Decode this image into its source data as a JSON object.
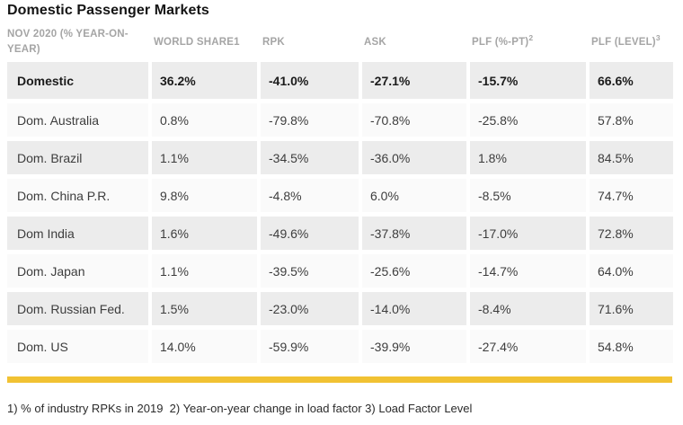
{
  "title": "Domestic Passenger Markets",
  "accent_color": "#f1c233",
  "row_stripe_colors": {
    "odd": "#ececec",
    "even": "#fafafa"
  },
  "table": {
    "columns": [
      {
        "label": "NOV 2020 (% YEAR-ON-YEAR)",
        "sup": ""
      },
      {
        "label": "WORLD SHARE1",
        "sup": ""
      },
      {
        "label": "RPK",
        "sup": ""
      },
      {
        "label": "ASK",
        "sup": ""
      },
      {
        "label": "PLF (%-PT)",
        "sup": "2"
      },
      {
        "label": "PLF (LEVEL)",
        "sup": "3"
      }
    ],
    "rows": [
      {
        "market": "Domestic",
        "world_share": "36.2%",
        "rpk": "-41.0%",
        "ask": "-27.1%",
        "plf_pt": "-15.7%",
        "plf_level": "66.6%",
        "emphasis": true
      },
      {
        "market": "Dom. Australia",
        "world_share": "0.8%",
        "rpk": "-79.8%",
        "ask": "-70.8%",
        "plf_pt": "-25.8%",
        "plf_level": "57.8%",
        "emphasis": false
      },
      {
        "market": "Dom. Brazil",
        "world_share": "1.1%",
        "rpk": "-34.5%",
        "ask": "-36.0%",
        "plf_pt": "1.8%",
        "plf_level": "84.5%",
        "emphasis": false
      },
      {
        "market": "Dom. China P.R.",
        "world_share": "9.8%",
        "rpk": "-4.8%",
        "ask": "6.0%",
        "plf_pt": "-8.5%",
        "plf_level": "74.7%",
        "emphasis": false
      },
      {
        "market": "Dom India",
        "world_share": "1.6%",
        "rpk": "-49.6%",
        "ask": "-37.8%",
        "plf_pt": "-17.0%",
        "plf_level": "72.8%",
        "emphasis": false
      },
      {
        "market": "Dom. Japan",
        "world_share": "1.1%",
        "rpk": "-39.5%",
        "ask": "-25.6%",
        "plf_pt": "-14.7%",
        "plf_level": "64.0%",
        "emphasis": false
      },
      {
        "market": "Dom. Russian Fed.",
        "world_share": "1.5%",
        "rpk": "-23.0%",
        "ask": "-14.0%",
        "plf_pt": "-8.4%",
        "plf_level": "71.6%",
        "emphasis": false
      },
      {
        "market": "Dom. US",
        "world_share": "14.0%",
        "rpk": "-59.9%",
        "ask": "-39.9%",
        "plf_pt": "-27.4%",
        "plf_level": "54.8%",
        "emphasis": false
      }
    ]
  },
  "footnote": "1) % of industry RPKs in 2019  2) Year-on-year change in load factor 3) Load Factor Level",
  "chart_data": {
    "type": "table",
    "title": "Domestic Passenger Markets",
    "columns": [
      "NOV 2020 (% YEAR-ON-YEAR)",
      "WORLD SHARE1",
      "RPK",
      "ASK",
      "PLF (%-PT)2",
      "PLF (LEVEL)3"
    ],
    "rows": [
      [
        "Domestic",
        "36.2%",
        "-41.0%",
        "-27.1%",
        "-15.7%",
        "66.6%"
      ],
      [
        "Dom. Australia",
        "0.8%",
        "-79.8%",
        "-70.8%",
        "-25.8%",
        "57.8%"
      ],
      [
        "Dom. Brazil",
        "1.1%",
        "-34.5%",
        "-36.0%",
        "1.8%",
        "84.5%"
      ],
      [
        "Dom. China P.R.",
        "9.8%",
        "-4.8%",
        "6.0%",
        "-8.5%",
        "74.7%"
      ],
      [
        "Dom India",
        "1.6%",
        "-49.6%",
        "-37.8%",
        "-17.0%",
        "72.8%"
      ],
      [
        "Dom. Japan",
        "1.1%",
        "-39.5%",
        "-25.6%",
        "-14.7%",
        "64.0%"
      ],
      [
        "Dom. Russian Fed.",
        "1.5%",
        "-23.0%",
        "-14.0%",
        "-8.4%",
        "71.6%"
      ],
      [
        "Dom. US",
        "14.0%",
        "-59.9%",
        "-39.9%",
        "-27.4%",
        "54.8%"
      ]
    ],
    "footnote": "1) % of industry RPKs in 2019  2) Year-on-year change in load factor 3) Load Factor Level"
  }
}
